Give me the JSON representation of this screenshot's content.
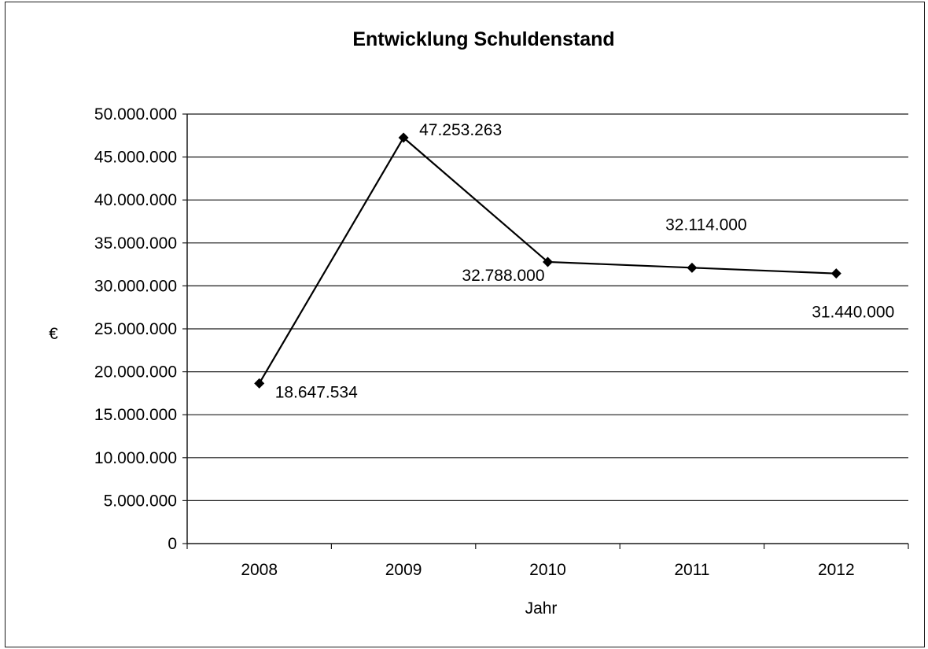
{
  "chart_data": {
    "type": "line",
    "title": "Entwicklung Schuldenstand",
    "xlabel": "Jahr",
    "ylabel": "€",
    "categories": [
      "2008",
      "2009",
      "2010",
      "2011",
      "2012"
    ],
    "series": [
      {
        "values": [
          18647534,
          47253263,
          32788000,
          32114000,
          31440000
        ],
        "data_labels": [
          "18.647.534",
          "47.253.263",
          "32.788.000",
          "32.114.000",
          "31.440.000"
        ],
        "color": "#000000",
        "marker": "diamond"
      }
    ],
    "ylim": [
      0,
      50000000
    ],
    "y_step": 5000000,
    "y_tick_labels": [
      "0",
      "5.000.000",
      "10.000.000",
      "15.000.000",
      "20.000.000",
      "25.000.000",
      "30.000.000",
      "35.000.000",
      "40.000.000",
      "45.000.000",
      "50.000.000"
    ],
    "grid": true,
    "legend": "none"
  }
}
